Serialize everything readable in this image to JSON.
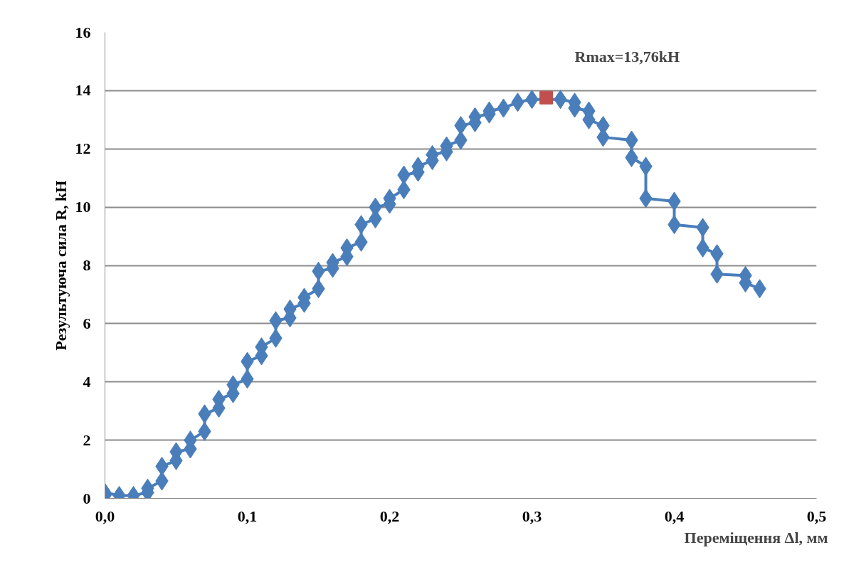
{
  "chart_data": {
    "type": "line",
    "xlabel": "Переміщення Δl, мм",
    "ylabel": "Результуюча сила R, kH",
    "annotations": [
      {
        "text": "Rmax=13,76kH",
        "x": 0.31,
        "y": 13.76
      }
    ],
    "series": [
      {
        "color": "#4a7ebb",
        "marker": "diamond",
        "x": [
          0.0,
          0.0,
          0.01,
          0.02,
          0.03,
          0.03,
          0.04,
          0.04,
          0.05,
          0.05,
          0.06,
          0.06,
          0.07,
          0.07,
          0.08,
          0.08,
          0.09,
          0.09,
          0.1,
          0.1,
          0.11,
          0.11,
          0.12,
          0.12,
          0.13,
          0.13,
          0.14,
          0.14,
          0.15,
          0.15,
          0.16,
          0.16,
          0.17,
          0.17,
          0.18,
          0.18,
          0.19,
          0.19,
          0.2,
          0.2,
          0.21,
          0.21,
          0.22,
          0.22,
          0.23,
          0.23,
          0.24,
          0.24,
          0.25,
          0.25,
          0.26,
          0.26,
          0.27,
          0.27,
          0.28,
          0.29,
          0.3,
          0.32,
          0.33,
          0.33,
          0.34,
          0.34,
          0.35,
          0.35,
          0.37,
          0.37,
          0.38,
          0.38,
          0.4,
          0.4,
          0.42,
          0.42,
          0.43,
          0.43,
          0.45,
          0.45,
          0.46
        ],
        "values": [
          0.1,
          0.2,
          0.1,
          0.1,
          0.2,
          0.35,
          0.6,
          1.1,
          1.3,
          1.6,
          1.7,
          2.0,
          2.3,
          2.9,
          3.1,
          3.4,
          3.6,
          3.9,
          4.1,
          4.7,
          4.9,
          5.2,
          5.5,
          6.1,
          6.2,
          6.5,
          6.7,
          6.9,
          7.2,
          7.8,
          7.9,
          8.1,
          8.3,
          8.6,
          8.8,
          9.4,
          9.6,
          10.0,
          10.1,
          10.3,
          10.6,
          11.1,
          11.2,
          11.4,
          11.6,
          11.8,
          11.9,
          12.1,
          12.3,
          12.8,
          12.9,
          13.1,
          13.2,
          13.3,
          13.4,
          13.6,
          13.7,
          13.7,
          13.6,
          13.4,
          13.3,
          13.0,
          12.8,
          12.4,
          12.3,
          11.7,
          11.4,
          10.3,
          10.2,
          9.4,
          9.3,
          8.6,
          8.4,
          7.7,
          7.65,
          7.4,
          7.2
        ]
      },
      {
        "type": "scatter",
        "color": "#c0504d",
        "marker": "square",
        "x": [
          0.31
        ],
        "values": [
          13.76
        ]
      }
    ],
    "xlim": [
      0,
      0.5
    ],
    "ylim": [
      0,
      16
    ],
    "xticks": [
      {
        "value": 0,
        "label": "0,0"
      },
      {
        "value": 0.1,
        "label": "0,1"
      },
      {
        "value": 0.2,
        "label": "0,2"
      },
      {
        "value": 0.3,
        "label": "0,3"
      },
      {
        "value": 0.4,
        "label": "0,4"
      },
      {
        "value": 0.5,
        "label": "0,5"
      }
    ],
    "yticks": [
      0,
      2,
      4,
      6,
      8,
      10,
      12,
      14,
      16
    ],
    "grid": "y"
  }
}
